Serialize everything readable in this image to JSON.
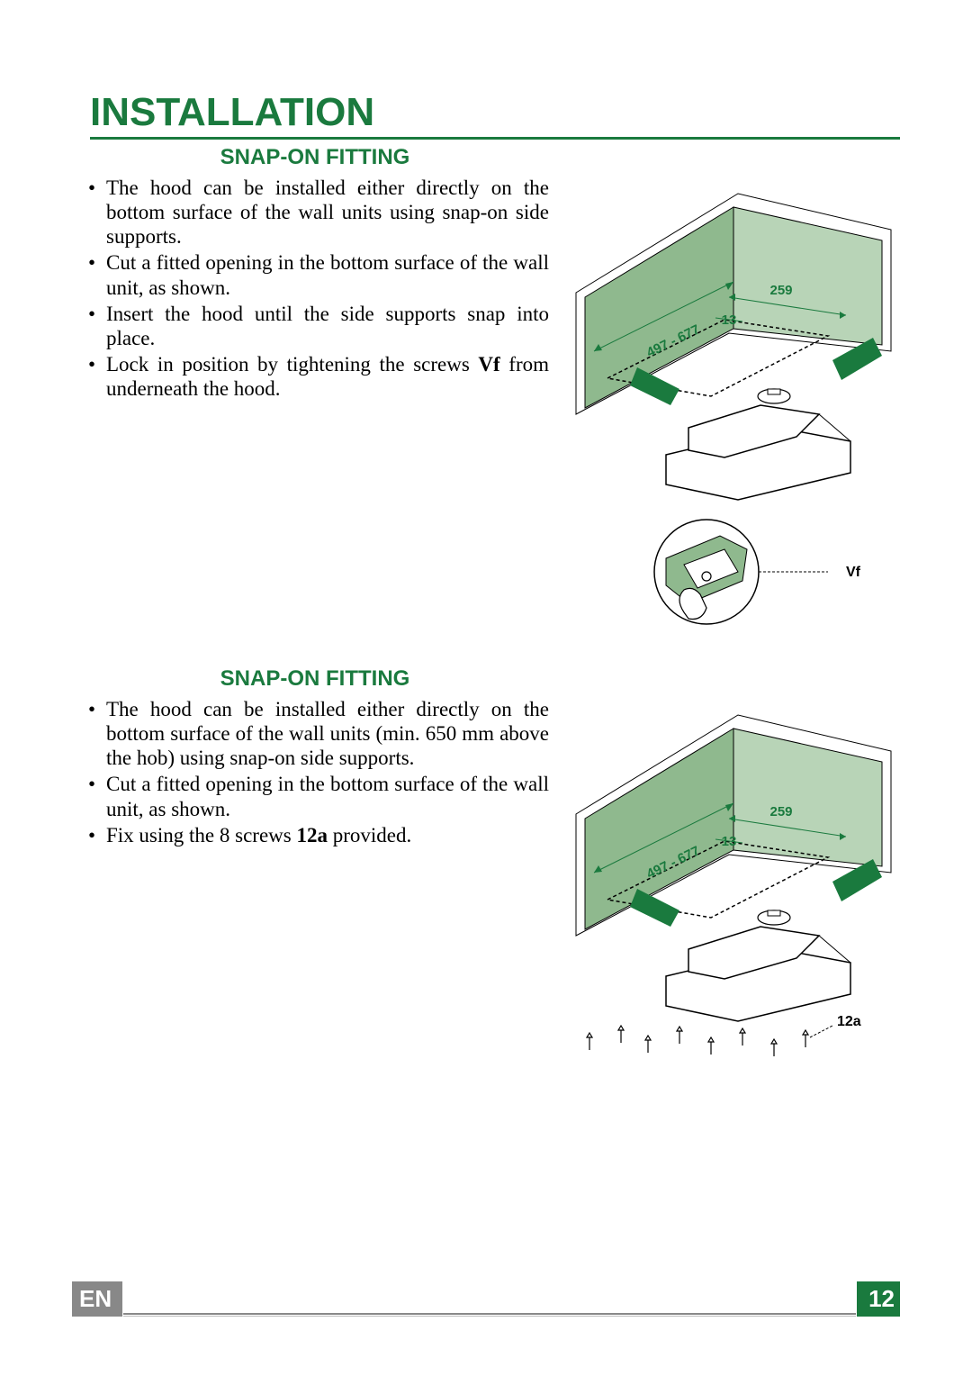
{
  "title": "INSTALLATION",
  "section1": {
    "heading": "SNAP-ON FITTING",
    "bullets": [
      "The hood can be installed either directly on the bottom surface of the wall units using snap-on side supports.",
      "Cut a fitted opening in the bottom surface of the wall unit, as shown.",
      "Insert the hood until the side supports snap into place.",
      "Lock in position by tightening the screws <b>Vf</b> from underneath the hood."
    ],
    "diagram": {
      "dim_259": "259",
      "dim_13": "13",
      "dim_497_677": "497 - 677",
      "label_vf": "Vf",
      "green": "#8fb98e",
      "dark_green": "#1a7a3e"
    }
  },
  "section2": {
    "heading": "SNAP-ON FITTING",
    "bullets": [
      "The hood can be installed either directly on the bottom surface of the wall units (min. 650 mm above the hob) using snap-on side supports.",
      "Cut a fitted opening in the bottom surface of the wall unit, as shown.",
      "Fix using the 8 screws <b>12a</b> provided."
    ],
    "diagram": {
      "dim_259": "259",
      "dim_13": "13",
      "dim_497_677": "497 - 677",
      "label_12a": "12a",
      "green": "#8fb98e",
      "dark_green": "#1a7a3e"
    }
  },
  "footer": {
    "lang": "EN",
    "page": "12"
  },
  "colors": {
    "brand_green": "#1a7a3e",
    "fill_green": "#8fb98e",
    "grey": "#888888"
  }
}
